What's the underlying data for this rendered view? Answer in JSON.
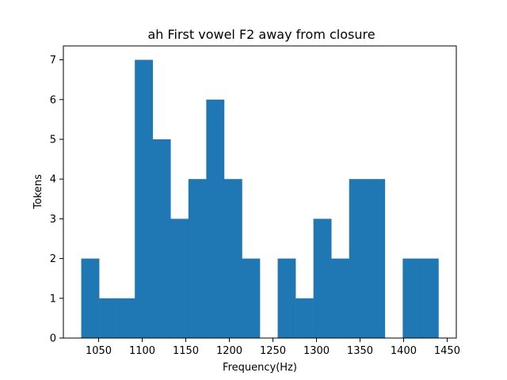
{
  "chart_data": {
    "type": "bar",
    "title": "ah First vowel F2 away from closure",
    "xlabel": "Frequency(Hz)",
    "ylabel": "Tokens",
    "bar_color": "#1f77b4",
    "bins": [
      {
        "x0": 1030.0,
        "x1": 1050.5,
        "count": 2
      },
      {
        "x0": 1050.5,
        "x1": 1071.0,
        "count": 1
      },
      {
        "x0": 1071.0,
        "x1": 1091.5,
        "count": 1
      },
      {
        "x0": 1091.5,
        "x1": 1112.0,
        "count": 7
      },
      {
        "x0": 1112.0,
        "x1": 1132.5,
        "count": 5
      },
      {
        "x0": 1132.5,
        "x1": 1153.0,
        "count": 3
      },
      {
        "x0": 1153.0,
        "x1": 1173.5,
        "count": 4
      },
      {
        "x0": 1173.5,
        "x1": 1194.0,
        "count": 6
      },
      {
        "x0": 1194.0,
        "x1": 1214.5,
        "count": 4
      },
      {
        "x0": 1214.5,
        "x1": 1235.0,
        "count": 2
      },
      {
        "x0": 1235.0,
        "x1": 1255.5,
        "count": 0
      },
      {
        "x0": 1255.5,
        "x1": 1276.0,
        "count": 2
      },
      {
        "x0": 1276.0,
        "x1": 1296.5,
        "count": 1
      },
      {
        "x0": 1296.5,
        "x1": 1317.0,
        "count": 3
      },
      {
        "x0": 1317.0,
        "x1": 1337.5,
        "count": 2
      },
      {
        "x0": 1337.5,
        "x1": 1358.0,
        "count": 4
      },
      {
        "x0": 1358.0,
        "x1": 1378.5,
        "count": 4
      },
      {
        "x0": 1378.5,
        "x1": 1399.0,
        "count": 0
      },
      {
        "x0": 1399.0,
        "x1": 1419.5,
        "count": 2
      },
      {
        "x0": 1419.5,
        "x1": 1440.0,
        "count": 2
      }
    ],
    "xlim": [
      1009.5,
      1460.5
    ],
    "ylim": [
      0,
      7.35
    ],
    "xticks": [
      1050,
      1100,
      1150,
      1200,
      1250,
      1300,
      1350,
      1400,
      1450
    ],
    "yticks": [
      0,
      1,
      2,
      3,
      4,
      5,
      6,
      7
    ],
    "grid": false,
    "legend": "none"
  }
}
